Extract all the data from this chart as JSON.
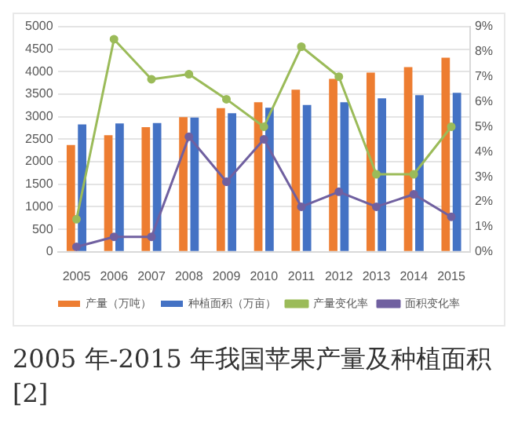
{
  "chart_data": {
    "type": "bar",
    "categories": [
      "2005",
      "2006",
      "2007",
      "2008",
      "2009",
      "2010",
      "2011",
      "2012",
      "2013",
      "2014",
      "2015"
    ],
    "series": [
      {
        "name": "产量（万吨）",
        "color": "#ed7d31",
        "values": [
          2370,
          2590,
          2770,
          2990,
          3190,
          3320,
          3600,
          3840,
          3980,
          4100,
          4310
        ]
      },
      {
        "name": "种植面积（万亩）",
        "color": "#4472c4",
        "values": [
          2830,
          2850,
          2860,
          2980,
          3080,
          3200,
          3260,
          3320,
          3410,
          3480,
          3530
        ]
      },
      {
        "name": "产量变化率",
        "type": "line",
        "axis": "y2",
        "color": "#9bbb59",
        "values": [
          1.3,
          8.5,
          6.9,
          7.1,
          6.1,
          5.0,
          8.2,
          7.0,
          3.1,
          3.1,
          5.0
        ]
      },
      {
        "name": "面积变化率",
        "type": "line",
        "axis": "y2",
        "color": "#7060a0",
        "values": [
          0.2,
          0.6,
          0.6,
          4.6,
          2.8,
          4.5,
          1.8,
          2.4,
          1.8,
          2.3,
          1.4
        ]
      }
    ],
    "ylim": [
      0,
      5000
    ],
    "yticks": [
      0,
      500,
      1000,
      1500,
      2000,
      2500,
      3000,
      3500,
      4000,
      4500,
      5000
    ],
    "y2lim": [
      0,
      9
    ],
    "y2ticks": [
      {
        "value": 0,
        "label": "0%"
      },
      {
        "value": 1,
        "label": "1%"
      },
      {
        "value": 2,
        "label": "2%"
      },
      {
        "value": 3,
        "label": "3%"
      },
      {
        "value": 4,
        "label": "4%"
      },
      {
        "value": 5,
        "label": "5%"
      },
      {
        "value": 6,
        "label": "6%"
      },
      {
        "value": 7,
        "label": "7%"
      },
      {
        "value": 8,
        "label": "8%"
      },
      {
        "value": 9,
        "label": "9%"
      }
    ],
    "grid": "y",
    "legend": "bottom",
    "marker": "circle",
    "line_style": "solid",
    "annotations": [
      "2005 年-2015 年我国苹果产量及种植面积 [2]"
    ]
  }
}
